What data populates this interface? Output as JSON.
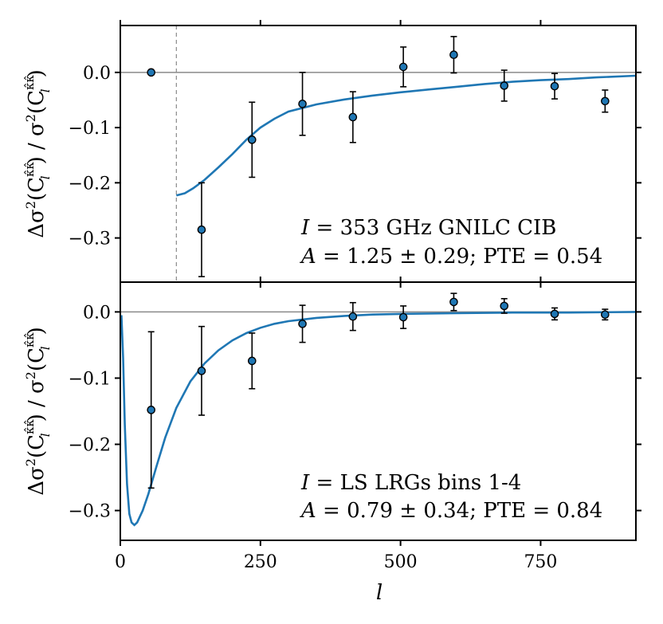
{
  "chart_data": {
    "type": "scatter",
    "shared_x": {
      "label": "l",
      "xlim": [
        0,
        920
      ],
      "ticks": [
        0,
        250,
        500,
        750
      ],
      "tick_labels": [
        "0",
        "250",
        "500",
        "750"
      ]
    },
    "ylabel": "Δσ²(Ĉl^κ̂κ̂) / σ²(Ĉl^κ̂κ̂)",
    "ylabel_parts": {
      "prefix": "Δσ",
      "sup": "2",
      "arg_open": "(C",
      "hat_sup": "κ̂κ̂",
      "sub": "l",
      "arg_close": ")",
      "slash": " / σ"
    },
    "panels": [
      {
        "id": "top",
        "ylim": [
          -0.38,
          0.085
        ],
        "yticks": [
          0.0,
          -0.1,
          -0.2,
          -0.3
        ],
        "ytick_labels": [
          "0.0",
          "−0.1",
          "−0.2",
          "−0.3"
        ],
        "vline_x": 100,
        "points": {
          "x": [
            55,
            145,
            235,
            325,
            415,
            505,
            595,
            685,
            775,
            865
          ],
          "y": [
            0.0,
            -0.285,
            -0.122,
            -0.057,
            -0.081,
            0.01,
            0.032,
            -0.024,
            -0.025,
            -0.052
          ],
          "yerr": [
            0.0,
            0.085,
            0.068,
            0.057,
            0.046,
            0.036,
            0.033,
            0.028,
            0.023,
            0.02
          ]
        },
        "model": {
          "x": [
            100,
            115,
            130,
            150,
            175,
            200,
            225,
            250,
            275,
            300,
            350,
            400,
            450,
            500,
            550,
            600,
            650,
            700,
            750,
            800,
            850,
            920
          ],
          "y": [
            -0.223,
            -0.219,
            -0.21,
            -0.195,
            -0.172,
            -0.148,
            -0.122,
            -0.1,
            -0.084,
            -0.071,
            -0.058,
            -0.049,
            -0.042,
            -0.036,
            -0.031,
            -0.026,
            -0.021,
            -0.017,
            -0.014,
            -0.012,
            -0.009,
            -0.006
          ]
        },
        "annotation": {
          "line1_label": "I = 353 GHz GNILC CIB",
          "line1_var": "I",
          "line1_eq": " = ",
          "line1_num": "353",
          "line1_rest": " GHz GNILC CIB",
          "line2_var": "A",
          "line2_eq": " = ",
          "line2_val": "1.25 ± 0.29",
          "line2_rest": "; PTE = 0.54"
        }
      },
      {
        "id": "bottom",
        "ylim": [
          -0.345,
          0.045
        ],
        "yticks": [
          0.0,
          -0.1,
          -0.2,
          -0.3
        ],
        "ytick_labels": [
          "0.0",
          "−0.1",
          "−0.2",
          "−0.3"
        ],
        "points": {
          "x": [
            55,
            145,
            235,
            325,
            415,
            505,
            595,
            685,
            775,
            865
          ],
          "y": [
            -0.148,
            -0.089,
            -0.074,
            -0.018,
            -0.007,
            -0.008,
            0.015,
            0.009,
            -0.003,
            -0.004
          ],
          "yerr": [
            0.118,
            0.067,
            0.042,
            0.028,
            0.021,
            0.017,
            0.013,
            0.011,
            0.009,
            0.008
          ]
        },
        "model": {
          "x": [
            2,
            5,
            8,
            12,
            16,
            20,
            25,
            30,
            40,
            50,
            65,
            80,
            100,
            125,
            150,
            175,
            200,
            225,
            250,
            275,
            300,
            350,
            400,
            450,
            500,
            600,
            700,
            800,
            920
          ],
          "y": [
            -0.005,
            -0.07,
            -0.17,
            -0.26,
            -0.305,
            -0.318,
            -0.322,
            -0.318,
            -0.3,
            -0.275,
            -0.232,
            -0.19,
            -0.145,
            -0.105,
            -0.078,
            -0.058,
            -0.043,
            -0.032,
            -0.024,
            -0.018,
            -0.014,
            -0.009,
            -0.006,
            -0.004,
            -0.003,
            -0.002,
            -0.001,
            -0.001,
            0.0
          ]
        },
        "annotation": {
          "line1_label": "I = LS LRGs bins 1-4",
          "line1_var": "I",
          "line1_eq": " = ",
          "line1_rest": "LS LRGs bins 1-4",
          "line2_var": "A",
          "line2_eq": " = ",
          "line2_val": "0.79 ± 0.34",
          "line2_rest": "; PTE = 0.84"
        }
      }
    ]
  }
}
